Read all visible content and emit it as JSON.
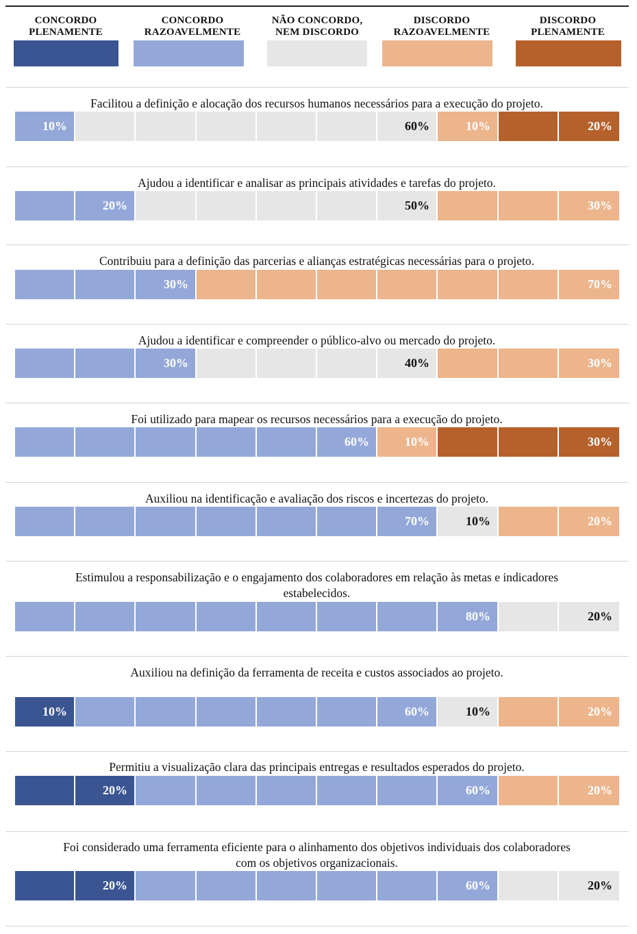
{
  "colors": {
    "concordo_plenamente": "#3a5592",
    "concordo_razoavelmente": "#93a8d8",
    "neutro": "#e6e6e6",
    "discordo_razoavelmente": "#ecb58c",
    "discordo_plenamente": "#b5612c"
  },
  "chart_data": {
    "type": "bar",
    "orientation": "horizontal-stacked",
    "legend": [
      {
        "key": "concordo_plenamente",
        "label_lines": [
          "CONCORDO",
          "PLENAMENTE"
        ]
      },
      {
        "key": "concordo_razoavelmente",
        "label_lines": [
          "CONCORDO",
          "RAZOAVELMENTE"
        ]
      },
      {
        "key": "neutro",
        "label_lines": [
          "NÃO CONCORDO,",
          "NEM DISCORDO"
        ]
      },
      {
        "key": "discordo_razoavelmente",
        "label_lines": [
          "DISCORDO",
          "RAZOAVELMENTE"
        ]
      },
      {
        "key": "discordo_plenamente",
        "label_lines": [
          "DISCORDO",
          "PLENAMENTE"
        ]
      }
    ],
    "unit": "%",
    "items": [
      {
        "question_lines": [
          "Facilitou a definição e alocação dos recursos humanos necessários para a execução do projeto."
        ],
        "values": {
          "concordo_plenamente": 0,
          "concordo_razoavelmente": 10,
          "neutro": 60,
          "discordo_razoavelmente": 10,
          "discordo_plenamente": 20
        },
        "labels": {
          "concordo_razoavelmente": "10%",
          "neutro": "60%",
          "discordo_razoavelmente": "10%",
          "discordo_plenamente": "20%"
        }
      },
      {
        "question_lines": [
          "Ajudou a identificar e analisar as principais atividades e tarefas do projeto."
        ],
        "values": {
          "concordo_plenamente": 0,
          "concordo_razoavelmente": 20,
          "neutro": 50,
          "discordo_razoavelmente": 30,
          "discordo_plenamente": 0
        },
        "labels": {
          "concordo_razoavelmente": "20%",
          "neutro": "50%",
          "discordo_razoavelmente": "30%"
        }
      },
      {
        "question_lines": [
          "Contribuiu para a definição das parcerias e alianças estratégicas necessárias para o projeto."
        ],
        "values": {
          "concordo_plenamente": 0,
          "concordo_razoavelmente": 30,
          "neutro": 0,
          "discordo_razoavelmente": 70,
          "discordo_plenamente": 0
        },
        "labels": {
          "concordo_razoavelmente": "30%",
          "discordo_razoavelmente": "70%"
        }
      },
      {
        "question_lines": [
          "Ajudou a identificar e compreender o público-alvo ou mercado do projeto."
        ],
        "values": {
          "concordo_plenamente": 0,
          "concordo_razoavelmente": 30,
          "neutro": 40,
          "discordo_razoavelmente": 30,
          "discordo_plenamente": 0
        },
        "labels": {
          "concordo_razoavelmente": "30%",
          "neutro": "40%",
          "discordo_razoavelmente": "30%"
        }
      },
      {
        "question_lines": [
          "Foi utilizado para mapear os recursos necessários para a execução do projeto."
        ],
        "values": {
          "concordo_plenamente": 0,
          "concordo_razoavelmente": 60,
          "neutro": 0,
          "discordo_razoavelmente": 10,
          "discordo_plenamente": 30
        },
        "labels": {
          "concordo_razoavelmente": "60%",
          "discordo_razoavelmente": "10%",
          "discordo_plenamente": "30%"
        }
      },
      {
        "question_lines": [
          "Auxiliou na identificação e avaliação dos riscos e incertezas do projeto."
        ],
        "values": {
          "concordo_plenamente": 0,
          "concordo_razoavelmente": 70,
          "neutro": 10,
          "discordo_razoavelmente": 20,
          "discordo_plenamente": 0
        },
        "labels": {
          "concordo_razoavelmente": "70%",
          "neutro": "10%",
          "discordo_razoavelmente": "20%"
        }
      },
      {
        "question_lines": [
          "Estimulou a responsabilização e o engajamento dos colaboradores em relação às metas e indicadores",
          "estabelecidos."
        ],
        "values": {
          "concordo_plenamente": 0,
          "concordo_razoavelmente": 80,
          "neutro": 20,
          "discordo_razoavelmente": 0,
          "discordo_plenamente": 0
        },
        "labels": {
          "concordo_razoavelmente": "80%",
          "neutro": "20%"
        }
      },
      {
        "question_lines": [
          "Auxiliou na definição da ferramenta de receita e custos associados ao projeto."
        ],
        "values": {
          "concordo_plenamente": 10,
          "concordo_razoavelmente": 60,
          "neutro": 10,
          "discordo_razoavelmente": 20,
          "discordo_plenamente": 0
        },
        "labels": {
          "concordo_plenamente": "10%",
          "concordo_razoavelmente": "60%",
          "neutro": "10%",
          "discordo_razoavelmente": "20%"
        }
      },
      {
        "question_lines": [
          "Permitiu a visualização clara das principais entregas e resultados esperados do projeto."
        ],
        "values": {
          "concordo_plenamente": 20,
          "concordo_razoavelmente": 60,
          "neutro": 0,
          "discordo_razoavelmente": 20,
          "discordo_plenamente": 0
        },
        "labels": {
          "concordo_plenamente": "20%",
          "concordo_razoavelmente": "60%",
          "discordo_razoavelmente": "20%"
        }
      },
      {
        "question_lines": [
          "Foi considerado uma ferramenta eficiente para o alinhamento dos objetivos individuais dos colaboradores",
          "com os objetivos organizacionais."
        ],
        "values": {
          "concordo_plenamente": 20,
          "concordo_razoavelmente": 60,
          "neutro": 20,
          "discordo_razoavelmente": 0,
          "discordo_plenamente": 0
        },
        "labels": {
          "concordo_plenamente": "20%",
          "concordo_razoavelmente": "60%",
          "neutro": "20%"
        }
      }
    ]
  }
}
